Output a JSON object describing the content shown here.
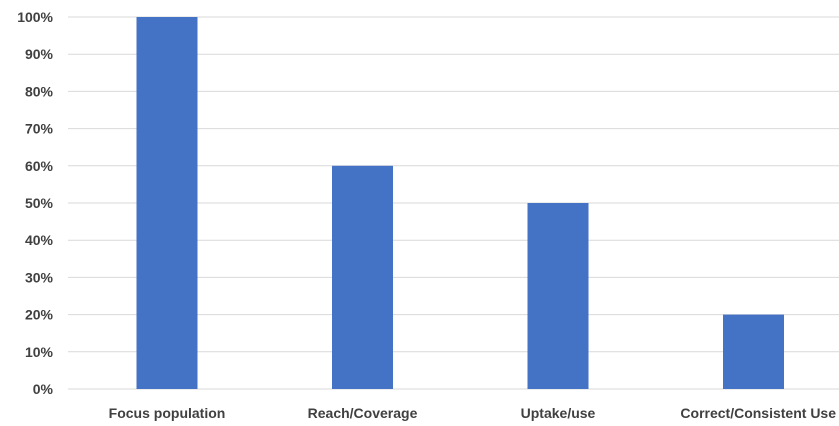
{
  "chart_data": {
    "type": "bar",
    "title": "",
    "xlabel": "",
    "ylabel": "",
    "categories": [
      "Focus population",
      "Reach/Coverage",
      "Uptake/use",
      "Correct/Consistent Use"
    ],
    "values": [
      100,
      60,
      50,
      20
    ],
    "ylim": [
      0,
      100
    ],
    "y_ticks": [
      0,
      10,
      20,
      30,
      40,
      50,
      60,
      70,
      80,
      90,
      100
    ],
    "y_tick_format": "percent",
    "grid": true,
    "legend": "none",
    "bar_color": "#4472C4",
    "grid_color": "#D9D9D9",
    "label_color": "#404040"
  }
}
